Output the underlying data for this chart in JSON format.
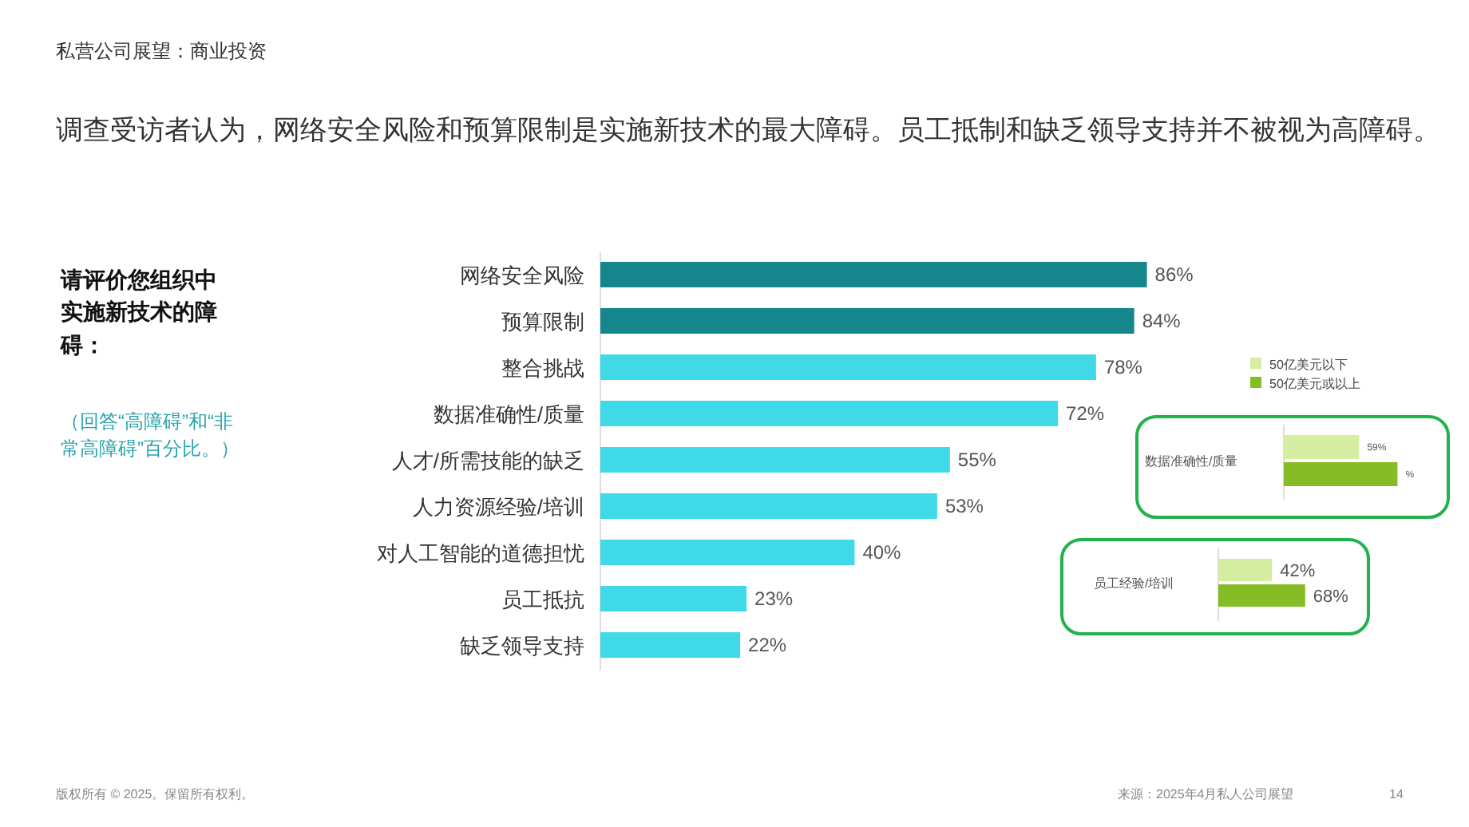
{
  "chart_data": [
    {
      "type": "bar",
      "orientation": "horizontal",
      "title": "调查受访者认为，网络安全风险和预算限制是实施新技术的最大障碍。员工抵制和缺乏领导支持并不被视为高障碍。",
      "categories": [
        "网络安全风险",
        "预算限制",
        "整合挑战",
        "数据准确性/质量",
        "人才/所需技能的缺乏",
        "人力资源经验/培训",
        "对人工智能的道德担忧",
        "员工抵抗",
        "缺乏领导支持"
      ],
      "values": [
        86,
        84,
        78,
        72,
        55,
        53,
        40,
        23,
        22
      ],
      "value_labels": [
        "86%",
        "84%",
        "78%",
        "72%",
        "55%",
        "53%",
        "40%",
        "23%",
        "22%"
      ],
      "colors": [
        "#14868c",
        "#14868c",
        "#3fd9e8",
        "#3fd9e8",
        "#3fd9e8",
        "#3fd9e8",
        "#3fd9e8",
        "#3fd9e8",
        "#3fd9e8"
      ],
      "annotations": [
        "私营公司展望：商业投资",
        "请评价您组织中实施新技术的障碍：",
        "（回答“高障碍”和“非常高障碍”百分比。）",
        "版权所有 © 2025。保留所有权利。",
        "来源：2025年4月私人公司展望",
        "14"
      ]
    },
    {
      "type": "bar",
      "orientation": "horizontal",
      "legend": "top",
      "categories": [
        "数据准确性/质量"
      ],
      "series": [
        {
          "name": "50亿美元以下",
          "color": "#d4eda0",
          "values": [
            59
          ],
          "value_labels": [
            "59%"
          ]
        },
        {
          "name": "50亿美元或以上",
          "color": "#86bc25",
          "values": [
            89
          ],
          "value_labels": [
            "%"
          ]
        }
      ]
    },
    {
      "type": "bar",
      "orientation": "horizontal",
      "categories": [
        "员工经验/培训"
      ],
      "series": [
        {
          "color": "#d4eda0",
          "values": [
            42
          ],
          "value_labels": [
            "42%"
          ]
        },
        {
          "color": "#86bc25",
          "values": [
            68
          ],
          "value_labels": [
            "68%"
          ]
        }
      ]
    }
  ]
}
